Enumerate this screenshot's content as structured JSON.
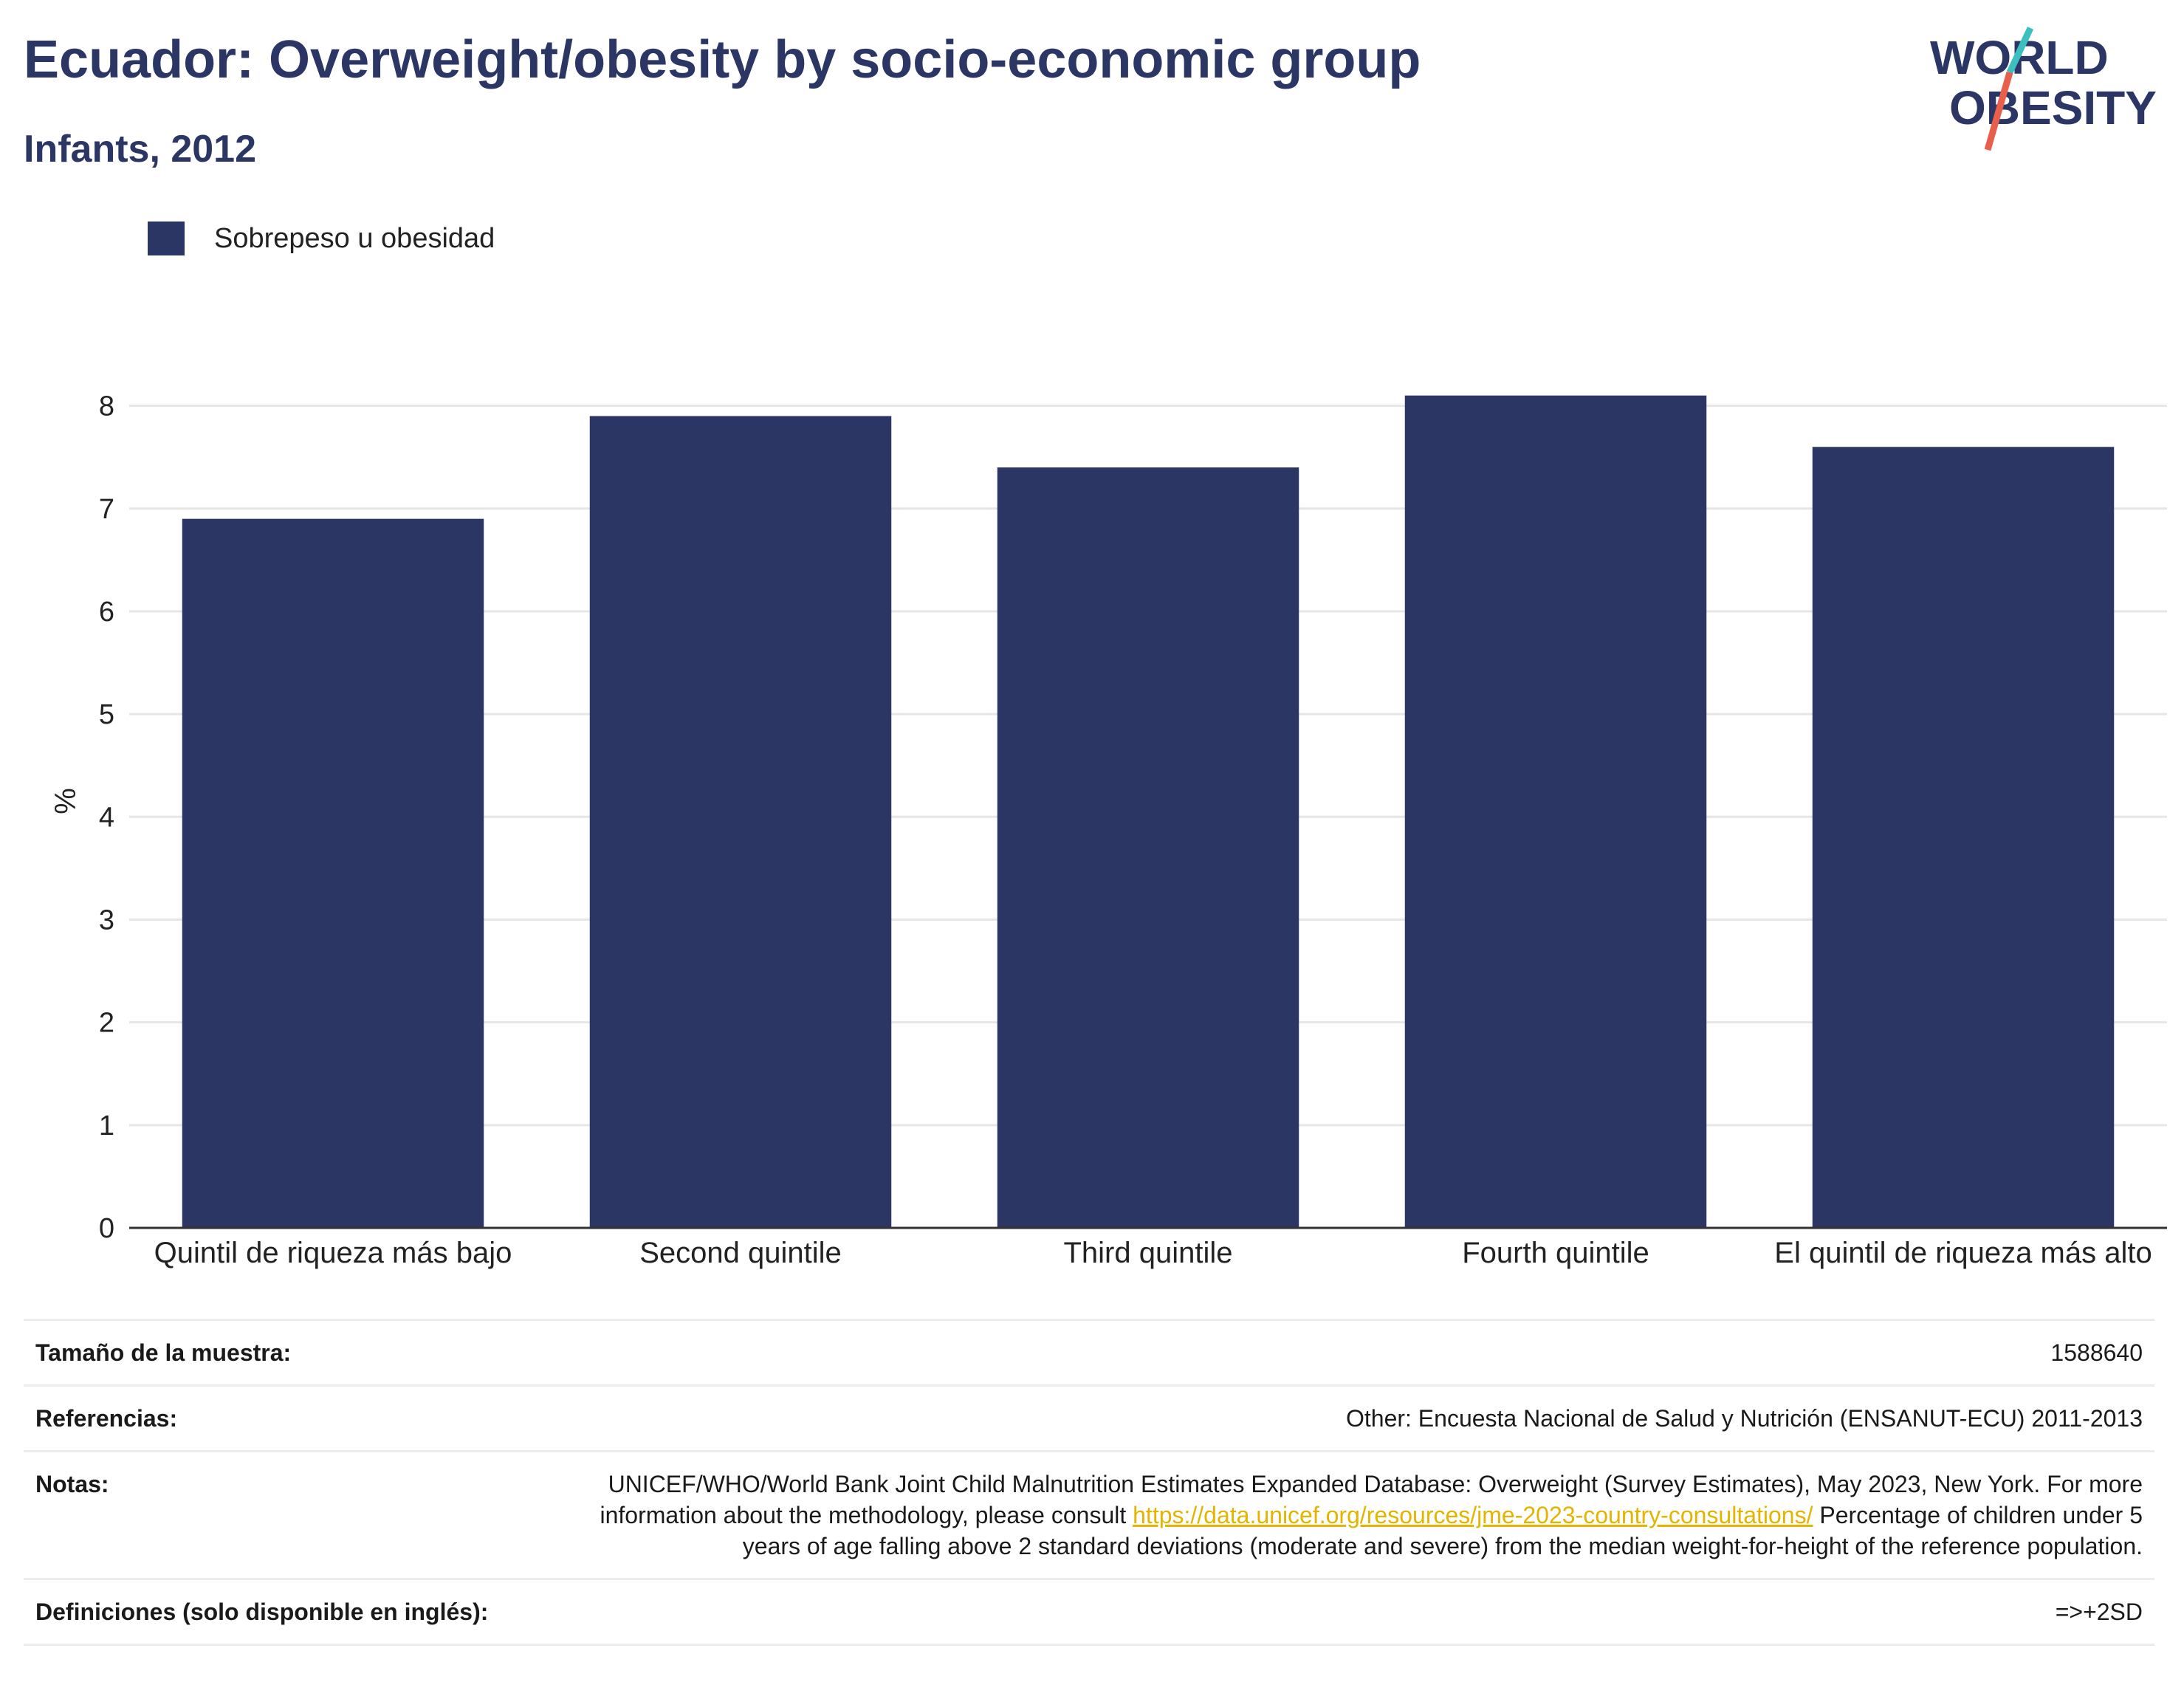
{
  "header": {
    "title": "Ecuador: Overweight/obesity by socio-economic group",
    "subtitle": "Infants, 2012"
  },
  "logo": {
    "line1": "WORLD",
    "line2": "OBESITY",
    "colors": {
      "text": "#2b3664",
      "slash_teal": "#3bbfbf",
      "slash_coral": "#e8604c"
    }
  },
  "colors": {
    "bar": "#2b3664",
    "axis": "#333333",
    "grid": "#e6e6e6"
  },
  "chart_data": {
    "type": "bar",
    "title": "Ecuador: Overweight/obesity by socio-economic group",
    "subtitle": "Infants, 2012",
    "xlabel": "",
    "ylabel": "%",
    "ylim": [
      0,
      8.5
    ],
    "yticks": [
      0,
      1,
      2,
      3,
      4,
      5,
      6,
      7,
      8
    ],
    "grid": true,
    "legend_position": "top-left",
    "categories": [
      "Quintil de riqueza más bajo",
      "Second quintile",
      "Third quintile",
      "Fourth quintile",
      "El quintil de riqueza más alto"
    ],
    "series": [
      {
        "name": "Sobrepeso u obesidad",
        "values": [
          6.9,
          7.9,
          7.4,
          8.1,
          7.6
        ]
      }
    ]
  },
  "info": {
    "sample_label": "Tamaño de la muestra:",
    "sample_value": "1588640",
    "refs_label": "Referencias:",
    "refs_value": "Other: Encuesta Nacional de Salud y Nutrición (ENSANUT-ECU) 2011-2013",
    "notes_label": "Notas:",
    "notes_text1": "UNICEF/WHO/World Bank Joint Child Malnutrition Estimates Expanded Database: Overweight (Survey Estimates), May 2023, New York. For more information about the methodology, please consult ",
    "notes_link": "https://data.unicef.org/resources/jme-2023-country-consultations/",
    "notes_text2": " Percentage of children under 5 years of age falling above 2 standard deviations (moderate and severe) from the median weight-for-height of the reference population.",
    "defs_label": "Definiciones (solo disponible en inglés):",
    "defs_value": "=>+2SD"
  }
}
